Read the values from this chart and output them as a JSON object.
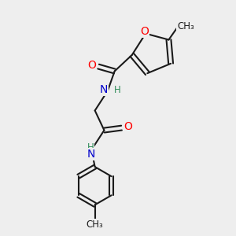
{
  "bg_color": "#eeeeee",
  "bond_color": "#1a1a1a",
  "bond_width": 1.5,
  "atom_colors": {
    "O": "#ff0000",
    "N": "#0000cc",
    "H": "#2e8b57",
    "C": "#1a1a1a"
  },
  "font_size": 10,
  "font_size_small": 8.5
}
